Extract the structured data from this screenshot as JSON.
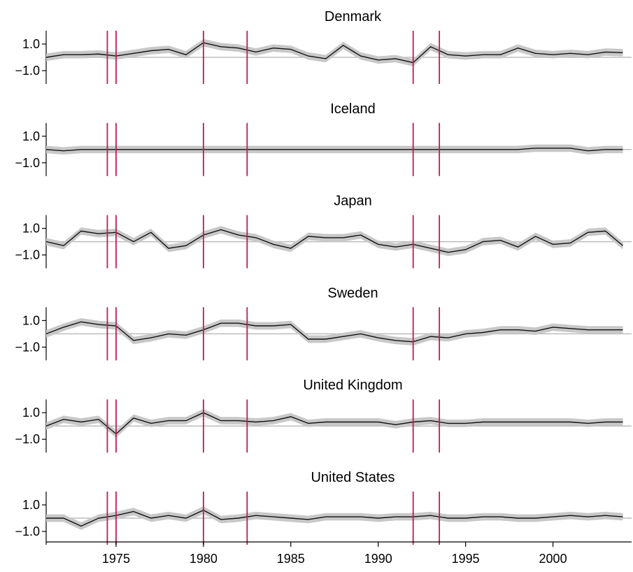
{
  "chart_data": {
    "type": "line",
    "layout": "small-multiples",
    "x_range": [
      1971,
      2004.5
    ],
    "x_ticks": [
      1975,
      1980,
      1985,
      1990,
      1995,
      2000
    ],
    "x_tick_labels": [
      "1975",
      "1980",
      "1985",
      "1990",
      "1995",
      "2000"
    ],
    "y_ticks": [
      1.0,
      -1.0
    ],
    "y_tick_labels": [
      "1.0",
      "−1.0"
    ],
    "ylim": [
      -2,
      2
    ],
    "reference_line_y": 0,
    "vertical_lines_x": [
      1974.5,
      1975,
      1980,
      1982.5,
      1992,
      1993.5
    ],
    "colors": {
      "series": "#111111",
      "band": "#c8c8c8",
      "reference": "#bdbdbd",
      "vertical_lines": "#c2185b"
    },
    "panels": [
      {
        "title": "Denmark",
        "points": [
          [
            1971,
            0
          ],
          [
            1972,
            0.2
          ],
          [
            1973,
            0.2
          ],
          [
            1974,
            0.25
          ],
          [
            1975,
            0.1
          ],
          [
            1976,
            0.3
          ],
          [
            1977,
            0.5
          ],
          [
            1978,
            0.6
          ],
          [
            1979,
            0.2
          ],
          [
            1980,
            1.1
          ],
          [
            1981,
            0.8
          ],
          [
            1982,
            0.7
          ],
          [
            1983,
            0.4
          ],
          [
            1984,
            0.7
          ],
          [
            1985,
            0.6
          ],
          [
            1986,
            0.1
          ],
          [
            1987,
            -0.1
          ],
          [
            1988,
            0.9
          ],
          [
            1989,
            0.1
          ],
          [
            1990,
            -0.2
          ],
          [
            1991,
            -0.1
          ],
          [
            1992,
            -0.4
          ],
          [
            1993,
            0.8
          ],
          [
            1994,
            0.2
          ],
          [
            1995,
            0.1
          ],
          [
            1996,
            0.2
          ],
          [
            1997,
            0.2
          ],
          [
            1998,
            0.7
          ],
          [
            1999,
            0.3
          ],
          [
            2000,
            0.2
          ],
          [
            2001,
            0.3
          ],
          [
            2002,
            0.2
          ],
          [
            2003,
            0.4
          ],
          [
            2004,
            0.35
          ]
        ]
      },
      {
        "title": "Iceland",
        "points": [
          [
            1971,
            0
          ],
          [
            1972,
            -0.1
          ],
          [
            1973,
            0
          ],
          [
            1974,
            0
          ],
          [
            1975,
            0
          ],
          [
            1976,
            0
          ],
          [
            1977,
            0
          ],
          [
            1978,
            0
          ],
          [
            1979,
            0
          ],
          [
            1980,
            0
          ],
          [
            1981,
            0
          ],
          [
            1982,
            0
          ],
          [
            1983,
            0
          ],
          [
            1984,
            0
          ],
          [
            1985,
            0
          ],
          [
            1986,
            0
          ],
          [
            1987,
            0
          ],
          [
            1988,
            0
          ],
          [
            1989,
            0
          ],
          [
            1990,
            0
          ],
          [
            1991,
            0
          ],
          [
            1992,
            0
          ],
          [
            1993,
            0
          ],
          [
            1994,
            0
          ],
          [
            1995,
            0
          ],
          [
            1996,
            0
          ],
          [
            1997,
            0
          ],
          [
            1998,
            0
          ],
          [
            1999,
            0.1
          ],
          [
            2000,
            0.1
          ],
          [
            2001,
            0.1
          ],
          [
            2002,
            -0.1
          ],
          [
            2003,
            0
          ],
          [
            2004,
            0
          ]
        ]
      },
      {
        "title": "Japan",
        "points": [
          [
            1971,
            0
          ],
          [
            1972,
            -0.3
          ],
          [
            1973,
            0.8
          ],
          [
            1974,
            0.6
          ],
          [
            1975,
            0.7
          ],
          [
            1976,
            0
          ],
          [
            1977,
            0.7
          ],
          [
            1978,
            -0.5
          ],
          [
            1979,
            -0.3
          ],
          [
            1980,
            0.5
          ],
          [
            1981,
            0.9
          ],
          [
            1982,
            0.5
          ],
          [
            1983,
            0.3
          ],
          [
            1984,
            -0.2
          ],
          [
            1985,
            -0.5
          ],
          [
            1986,
            0.4
          ],
          [
            1987,
            0.3
          ],
          [
            1988,
            0.3
          ],
          [
            1989,
            0.5
          ],
          [
            1990,
            -0.2
          ],
          [
            1991,
            -0.4
          ],
          [
            1992,
            -0.2
          ],
          [
            1993,
            -0.5
          ],
          [
            1994,
            -0.8
          ],
          [
            1995,
            -0.6
          ],
          [
            1996,
            0
          ],
          [
            1997,
            0.1
          ],
          [
            1998,
            -0.4
          ],
          [
            1999,
            0.4
          ],
          [
            2000,
            -0.2
          ],
          [
            2001,
            -0.1
          ],
          [
            2002,
            0.7
          ],
          [
            2003,
            0.8
          ],
          [
            2004,
            -0.3
          ]
        ]
      },
      {
        "title": "Sweden",
        "points": [
          [
            1971,
            0
          ],
          [
            1972,
            0.5
          ],
          [
            1973,
            0.9
          ],
          [
            1974,
            0.7
          ],
          [
            1975,
            0.6
          ],
          [
            1976,
            -0.5
          ],
          [
            1977,
            -0.3
          ],
          [
            1978,
            0
          ],
          [
            1979,
            -0.1
          ],
          [
            1980,
            0.3
          ],
          [
            1981,
            0.8
          ],
          [
            1982,
            0.8
          ],
          [
            1983,
            0.6
          ],
          [
            1984,
            0.6
          ],
          [
            1985,
            0.7
          ],
          [
            1986,
            -0.4
          ],
          [
            1987,
            -0.4
          ],
          [
            1988,
            -0.2
          ],
          [
            1989,
            0
          ],
          [
            1990,
            -0.3
          ],
          [
            1991,
            -0.5
          ],
          [
            1992,
            -0.6
          ],
          [
            1993,
            -0.2
          ],
          [
            1994,
            -0.3
          ],
          [
            1995,
            0
          ],
          [
            1996,
            0.1
          ],
          [
            1997,
            0.3
          ],
          [
            1998,
            0.3
          ],
          [
            1999,
            0.2
          ],
          [
            2000,
            0.5
          ],
          [
            2001,
            0.4
          ],
          [
            2002,
            0.3
          ],
          [
            2003,
            0.3
          ],
          [
            2004,
            0.3
          ]
        ]
      },
      {
        "title": "United Kingdom",
        "points": [
          [
            1971,
            0
          ],
          [
            1972,
            0.5
          ],
          [
            1973,
            0.3
          ],
          [
            1974,
            0.5
          ],
          [
            1975,
            -0.6
          ],
          [
            1976,
            0.6
          ],
          [
            1977,
            0.2
          ],
          [
            1978,
            0.4
          ],
          [
            1979,
            0.4
          ],
          [
            1980,
            1.0
          ],
          [
            1981,
            0.4
          ],
          [
            1982,
            0.4
          ],
          [
            1983,
            0.3
          ],
          [
            1984,
            0.4
          ],
          [
            1985,
            0.7
          ],
          [
            1986,
            0.2
          ],
          [
            1987,
            0.3
          ],
          [
            1988,
            0.3
          ],
          [
            1989,
            0.3
          ],
          [
            1990,
            0.3
          ],
          [
            1991,
            0.1
          ],
          [
            1992,
            0.3
          ],
          [
            1993,
            0.4
          ],
          [
            1994,
            0.2
          ],
          [
            1995,
            0.2
          ],
          [
            1996,
            0.3
          ],
          [
            1997,
            0.3
          ],
          [
            1998,
            0.3
          ],
          [
            1999,
            0.3
          ],
          [
            2000,
            0.3
          ],
          [
            2001,
            0.3
          ],
          [
            2002,
            0.2
          ],
          [
            2003,
            0.3
          ],
          [
            2004,
            0.3
          ]
        ]
      },
      {
        "title": "United States",
        "points": [
          [
            1971,
            0
          ],
          [
            1972,
            0
          ],
          [
            1973,
            -0.6
          ],
          [
            1974,
            0
          ],
          [
            1975,
            0.2
          ],
          [
            1976,
            0.5
          ],
          [
            1977,
            0
          ],
          [
            1978,
            0.2
          ],
          [
            1979,
            0
          ],
          [
            1980,
            0.6
          ],
          [
            1981,
            -0.1
          ],
          [
            1982,
            0
          ],
          [
            1983,
            0.2
          ],
          [
            1984,
            0.1
          ],
          [
            1985,
            0
          ],
          [
            1986,
            -0.1
          ],
          [
            1987,
            0.1
          ],
          [
            1988,
            0.1
          ],
          [
            1989,
            0.1
          ],
          [
            1990,
            0
          ],
          [
            1991,
            0.1
          ],
          [
            1992,
            0.1
          ],
          [
            1993,
            0.2
          ],
          [
            1994,
            0
          ],
          [
            1995,
            0
          ],
          [
            1996,
            0.1
          ],
          [
            1997,
            0.1
          ],
          [
            1998,
            0
          ],
          [
            1999,
            0
          ],
          [
            2000,
            0.1
          ],
          [
            2001,
            0.2
          ],
          [
            2002,
            0.1
          ],
          [
            2003,
            0.2
          ],
          [
            2004,
            0.1
          ]
        ]
      }
    ]
  }
}
